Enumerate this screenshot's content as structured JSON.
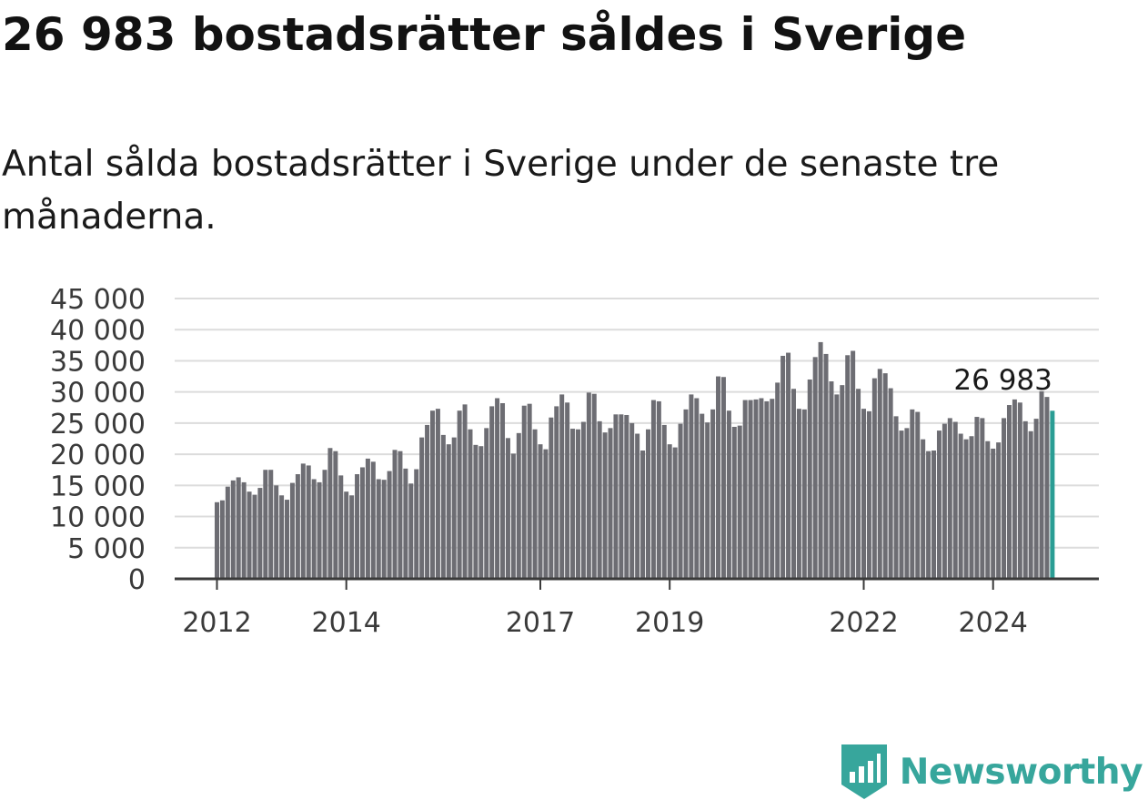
{
  "title": "26 983 bostadsrätter såldes i Sverige",
  "subtitle": "Antal sålda bostadsrätter i Sverige under de senaste tre månaderna.",
  "brand": "Newsworthy",
  "colors": {
    "bar": "#6d6d73",
    "highlight": "#2a9d94",
    "grid": "#dcdcdc",
    "axis": "#3a3a3a",
    "brand": "#37a69c"
  },
  "chart_data": {
    "type": "bar",
    "unit": "månad",
    "start": "2012-01",
    "ylim": [
      0,
      45000
    ],
    "yticks": [
      0,
      5000,
      10000,
      15000,
      20000,
      25000,
      30000,
      35000,
      40000,
      45000
    ],
    "ytick_labels": [
      "0",
      "5 000",
      "10 000",
      "15 000",
      "20 000",
      "25 000",
      "30 000",
      "35 000",
      "40 000",
      "45 000"
    ],
    "xtick_labels": [
      "2012",
      "2014",
      "2017",
      "2019",
      "2022",
      "2024"
    ],
    "grid": true,
    "highlight_label": "26 983",
    "values": [
      12300,
      12600,
      14800,
      15800,
      16300,
      15500,
      14000,
      13500,
      14600,
      17500,
      17500,
      15000,
      13400,
      12700,
      15400,
      16800,
      18500,
      18200,
      16000,
      15500,
      17500,
      21000,
      20500,
      16600,
      14000,
      13400,
      16800,
      17900,
      19300,
      18800,
      16000,
      15900,
      17300,
      20700,
      20500,
      17700,
      15300,
      17600,
      22700,
      24700,
      27000,
      27300,
      23100,
      21600,
      22700,
      27000,
      28000,
      24000,
      21500,
      21300,
      24200,
      27700,
      29000,
      28200,
      22600,
      20100,
      23400,
      27800,
      28100,
      24000,
      21600,
      20800,
      25900,
      27700,
      29600,
      28300,
      24100,
      24000,
      25200,
      29900,
      29700,
      25300,
      23500,
      24200,
      26400,
      26400,
      26300,
      25000,
      23300,
      20600,
      24000,
      28700,
      28500,
      24700,
      21600,
      21100,
      24900,
      27200,
      29600,
      29000,
      26500,
      25100,
      27200,
      32500,
      32400,
      27000,
      24400,
      24600,
      28700,
      28700,
      28800,
      29000,
      28500,
      28900,
      31500,
      35800,
      36300,
      30500,
      27300,
      27200,
      32000,
      35600,
      38000,
      36100,
      31700,
      29600,
      31100,
      35900,
      36600,
      30500,
      27300,
      26900,
      32200,
      33700,
      33000,
      30600,
      26100,
      23800,
      24200,
      27200,
      26800,
      22400,
      20500,
      20600,
      23800,
      24900,
      25800,
      25200,
      23300,
      22400,
      22900,
      26000,
      25800,
      22100,
      20900,
      21900,
      25800,
      27900,
      28800,
      28300,
      25300,
      23700,
      25700,
      30100,
      29200,
      26983
    ]
  }
}
